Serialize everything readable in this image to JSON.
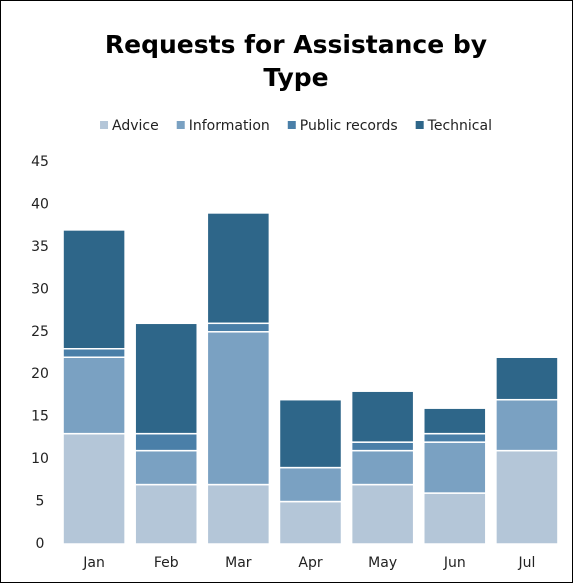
{
  "chart_data": {
    "type": "stacked_bar",
    "title": "Requests for Assistance by Type",
    "categories": [
      "Jan",
      "Feb",
      "Mar",
      "Apr",
      "May",
      "Jun",
      "Jul"
    ],
    "series": [
      {
        "name": "Advice",
        "color": "#b4c6d8",
        "values": [
          13,
          7,
          7,
          5,
          7,
          6,
          11
        ]
      },
      {
        "name": "Information",
        "color": "#7aa1c2",
        "values": [
          9,
          4,
          18,
          4,
          4,
          6,
          6
        ]
      },
      {
        "name": "Public records",
        "color": "#4a7fa8",
        "values": [
          1,
          2,
          1,
          0,
          1,
          1,
          0
        ]
      },
      {
        "name": "Technical",
        "color": "#2e6689",
        "values": [
          14,
          13,
          13,
          8,
          6,
          3,
          5
        ]
      }
    ],
    "ylim": [
      0,
      45
    ],
    "yticks": [
      0,
      5,
      10,
      15,
      20,
      25,
      30,
      35,
      40,
      45
    ],
    "legend": "top",
    "grid": false
  }
}
